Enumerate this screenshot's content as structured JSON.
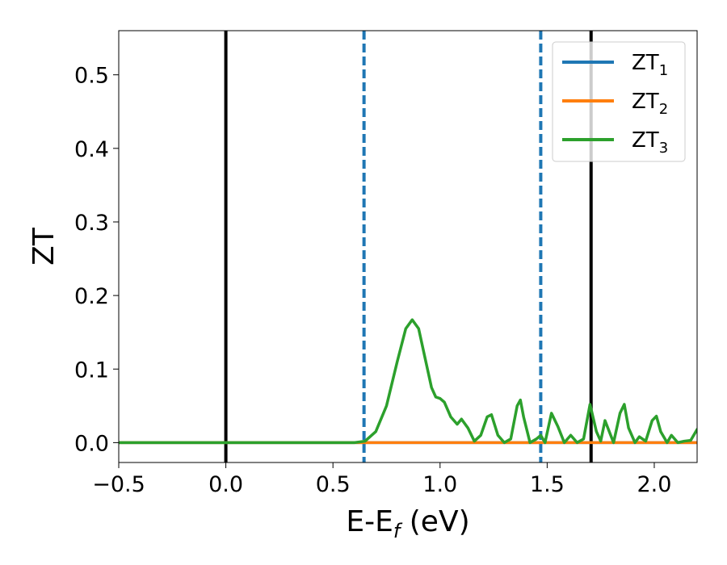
{
  "chart_data": {
    "type": "line",
    "xlabel": "E-E_f (eV)",
    "ylabel": "ZT",
    "xlim": [
      -0.5,
      2.2
    ],
    "ylim": [
      -0.027,
      0.56
    ],
    "x_ticks": [
      -0.5,
      0.0,
      0.5,
      1.0,
      1.5,
      2.0
    ],
    "x_tick_labels": [
      "−0.5",
      "0.0",
      "0.5",
      "1.0",
      "1.5",
      "2.0"
    ],
    "y_ticks": [
      0.0,
      0.1,
      0.2,
      0.3,
      0.4,
      0.5
    ],
    "y_tick_labels": [
      "0.0",
      "0.1",
      "0.2",
      "0.3",
      "0.4",
      "0.5"
    ],
    "grid": false,
    "legend_position": "top-right",
    "vertical_lines": [
      {
        "x": 0.0,
        "style": "solid",
        "color": "#000000"
      },
      {
        "x": 0.645,
        "style": "dashed",
        "color": "#1f77b4"
      },
      {
        "x": 1.47,
        "style": "dashed",
        "color": "#1f77b4"
      },
      {
        "x": 1.705,
        "style": "solid",
        "color": "#000000"
      }
    ],
    "series": [
      {
        "name": "ZT",
        "subscript": "1",
        "color": "#1f77b4",
        "x": [
          -0.5,
          2.2
        ],
        "y": [
          0.0,
          0.0
        ]
      },
      {
        "name": "ZT",
        "subscript": "2",
        "color": "#ff7f0e",
        "x": [
          -0.5,
          2.2
        ],
        "y": [
          0.0,
          0.0
        ]
      },
      {
        "name": "ZT",
        "subscript": "3",
        "color": "#2ca02c",
        "x": [
          -0.5,
          0.6,
          0.65,
          0.7,
          0.75,
          0.8,
          0.84,
          0.87,
          0.9,
          0.93,
          0.96,
          0.98,
          1.0,
          1.02,
          1.05,
          1.08,
          1.1,
          1.13,
          1.16,
          1.19,
          1.22,
          1.24,
          1.27,
          1.3,
          1.33,
          1.36,
          1.375,
          1.39,
          1.42,
          1.45,
          1.47,
          1.49,
          1.52,
          1.55,
          1.58,
          1.61,
          1.64,
          1.67,
          1.7,
          1.73,
          1.75,
          1.77,
          1.79,
          1.81,
          1.84,
          1.86,
          1.88,
          1.91,
          1.93,
          1.96,
          1.99,
          2.01,
          2.03,
          2.06,
          2.08,
          2.11,
          2.14,
          2.17,
          2.2
        ],
        "y": [
          0.0,
          0.0,
          0.002,
          0.015,
          0.05,
          0.11,
          0.155,
          0.167,
          0.155,
          0.115,
          0.075,
          0.062,
          0.06,
          0.055,
          0.035,
          0.025,
          0.032,
          0.02,
          0.002,
          0.01,
          0.035,
          0.038,
          0.01,
          0.0,
          0.005,
          0.05,
          0.058,
          0.035,
          0.0,
          0.005,
          0.01,
          0.0,
          0.04,
          0.022,
          0.0,
          0.01,
          0.0,
          0.005,
          0.052,
          0.015,
          0.002,
          0.03,
          0.015,
          0.0,
          0.04,
          0.052,
          0.02,
          0.0,
          0.008,
          0.002,
          0.03,
          0.036,
          0.015,
          0.0,
          0.01,
          0.0,
          0.002,
          0.003,
          0.018
        ]
      }
    ]
  }
}
